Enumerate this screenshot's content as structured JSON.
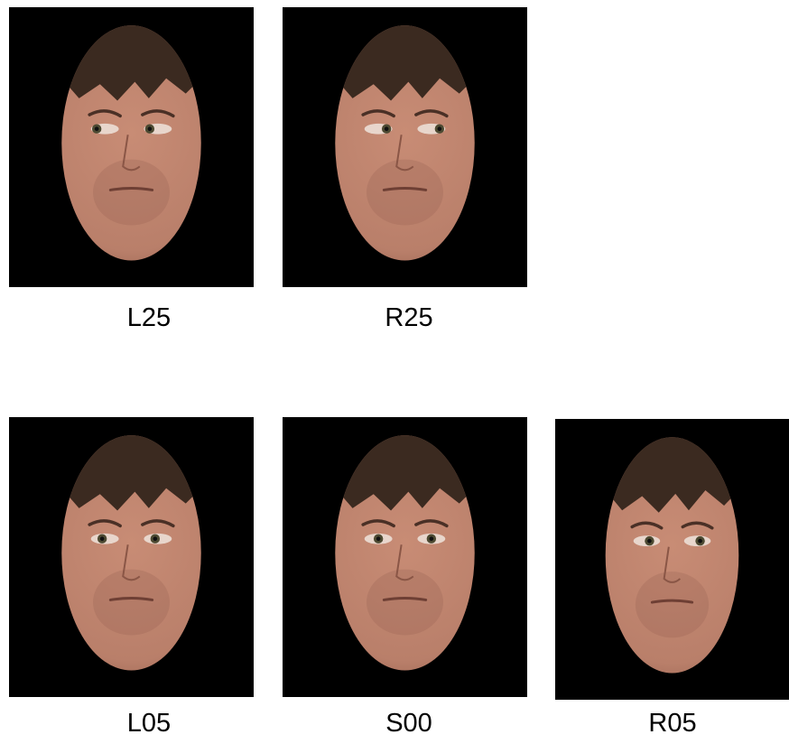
{
  "stimuli": [
    {
      "label": "L25",
      "gaze": "left"
    },
    {
      "label": "R25",
      "gaze": "right"
    },
    {
      "label": "L05",
      "gaze": "slight-left"
    },
    {
      "label": "S00",
      "gaze": "straight"
    },
    {
      "label": "R05",
      "gaze": "slight-right"
    }
  ],
  "colors": {
    "background": "#000000",
    "skin": "#b97f6a",
    "hair": "#3b2a20"
  }
}
